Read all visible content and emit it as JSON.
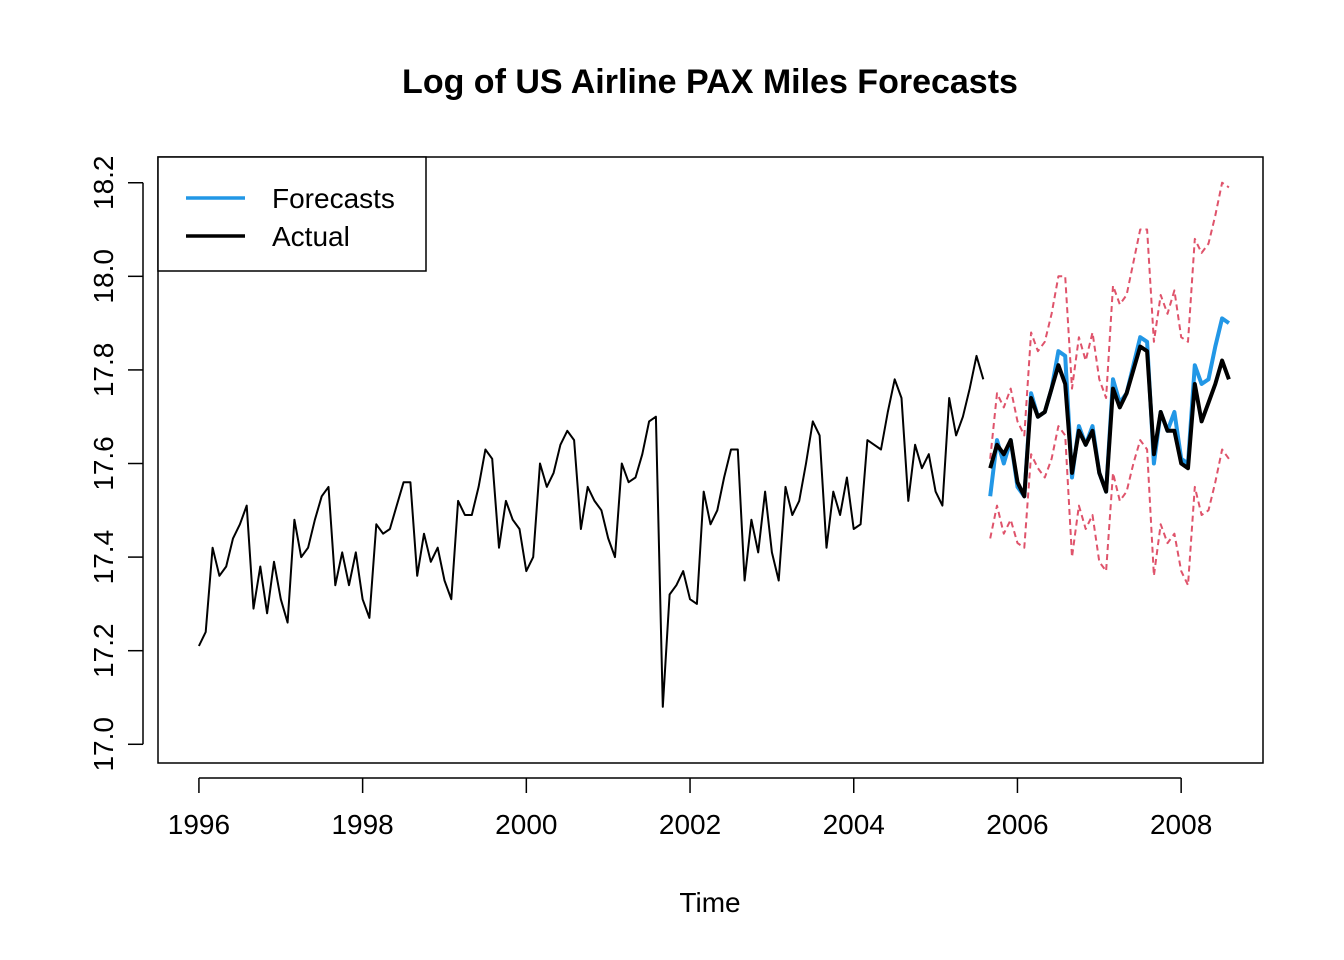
{
  "chart_data": {
    "type": "line",
    "title": "Log of US Airline PAX Miles Forecasts",
    "xlabel": "Time",
    "ylabel": "",
    "xlim": [
      1995.5,
      2009.0
    ],
    "ylim": [
      16.96,
      18.255
    ],
    "x_ticks": [
      1996,
      1998,
      2000,
      2002,
      2004,
      2006,
      2008
    ],
    "x_tick_labels": [
      "1996",
      "1998",
      "2000",
      "2002",
      "2004",
      "2006",
      "2008"
    ],
    "y_ticks": [
      17.0,
      17.2,
      17.4,
      17.6,
      17.8,
      18.0,
      18.2
    ],
    "y_tick_labels": [
      "17.0",
      "17.2",
      "17.4",
      "17.6",
      "17.8",
      "18.0",
      "18.2"
    ],
    "grid": false,
    "legend": {
      "position": "top-left",
      "entries": [
        {
          "label": "Forecasts",
          "color": "#2297e6"
        },
        {
          "label": "Actual",
          "color": "#000000"
        }
      ]
    },
    "history": {
      "x_start": 1996.0,
      "x_step": 0.083333,
      "color": "#000000",
      "values": [
        17.21,
        17.24,
        17.42,
        17.36,
        17.38,
        17.44,
        17.47,
        17.51,
        17.29,
        17.38,
        17.28,
        17.39,
        17.31,
        17.26,
        17.48,
        17.4,
        17.42,
        17.48,
        17.53,
        17.55,
        17.34,
        17.41,
        17.34,
        17.41,
        17.31,
        17.27,
        17.47,
        17.45,
        17.46,
        17.51,
        17.56,
        17.56,
        17.36,
        17.45,
        17.39,
        17.42,
        17.35,
        17.31,
        17.52,
        17.49,
        17.49,
        17.55,
        17.63,
        17.61,
        17.42,
        17.52,
        17.48,
        17.46,
        17.37,
        17.4,
        17.6,
        17.55,
        17.58,
        17.64,
        17.67,
        17.65,
        17.46,
        17.55,
        17.52,
        17.5,
        17.44,
        17.4,
        17.6,
        17.56,
        17.57,
        17.62,
        17.69,
        17.7,
        17.08,
        17.32,
        17.34,
        17.37,
        17.31,
        17.3,
        17.54,
        17.47,
        17.5,
        17.57,
        17.63,
        17.63,
        17.35,
        17.48,
        17.41,
        17.54,
        17.41,
        17.35,
        17.55,
        17.49,
        17.52,
        17.6,
        17.69,
        17.66,
        17.42,
        17.54,
        17.49,
        17.57,
        17.46,
        17.47,
        17.65,
        17.64,
        17.63,
        17.71,
        17.78,
        17.74,
        17.52,
        17.64,
        17.59,
        17.62,
        17.54,
        17.51,
        17.74,
        17.66,
        17.7,
        17.76,
        17.83,
        17.78
      ]
    },
    "series": [
      {
        "name": "Forecasts",
        "color": "#2297e6",
        "x_start": 2005.667,
        "x_step": 0.083333,
        "values": [
          17.53,
          17.65,
          17.6,
          17.65,
          17.55,
          17.53,
          17.75,
          17.7,
          17.71,
          17.76,
          17.84,
          17.83,
          17.57,
          17.68,
          17.64,
          17.68,
          17.58,
          17.54,
          17.78,
          17.73,
          17.75,
          17.81,
          17.87,
          17.86,
          17.6,
          17.71,
          17.67,
          17.71,
          17.61,
          17.6,
          17.81,
          17.77,
          17.78,
          17.85,
          17.91,
          17.9
        ]
      },
      {
        "name": "Actual",
        "color": "#000000",
        "x_start": 2005.667,
        "x_step": 0.083333,
        "values": [
          17.59,
          17.64,
          17.62,
          17.65,
          17.56,
          17.53,
          17.74,
          17.7,
          17.71,
          17.76,
          17.81,
          17.77,
          17.58,
          17.67,
          17.64,
          17.67,
          17.58,
          17.54,
          17.76,
          17.72,
          17.75,
          17.8,
          17.85,
          17.84,
          17.62,
          17.71,
          17.67,
          17.67,
          17.6,
          17.59,
          17.77,
          17.69,
          17.73,
          17.77,
          17.82,
          17.78
        ]
      },
      {
        "name": "",
        "color": "#df536b",
        "dashed": true,
        "x_start": 2005.667,
        "x_step": 0.083333,
        "values": [
          17.44,
          17.51,
          17.45,
          17.48,
          17.43,
          17.42,
          17.62,
          17.59,
          17.57,
          17.61,
          17.68,
          17.66,
          17.4,
          17.51,
          17.46,
          17.49,
          17.39,
          17.37,
          17.58,
          17.52,
          17.54,
          17.6,
          17.65,
          17.63,
          17.36,
          17.47,
          17.43,
          17.45,
          17.37,
          17.34,
          17.55,
          17.49,
          17.5,
          17.56,
          17.63,
          17.61
        ]
      },
      {
        "name": "",
        "color": "#df536b",
        "dashed": true,
        "x_start": 2005.667,
        "x_step": 0.083333,
        "values": [
          17.61,
          17.75,
          17.72,
          17.76,
          17.69,
          17.66,
          17.88,
          17.84,
          17.86,
          17.92,
          18.0,
          18.0,
          17.76,
          17.87,
          17.82,
          17.88,
          17.78,
          17.74,
          17.98,
          17.94,
          17.96,
          18.03,
          18.1,
          18.1,
          17.86,
          17.96,
          17.92,
          17.97,
          17.87,
          17.86,
          18.08,
          18.05,
          18.07,
          18.13,
          18.2,
          18.19
        ]
      }
    ]
  }
}
